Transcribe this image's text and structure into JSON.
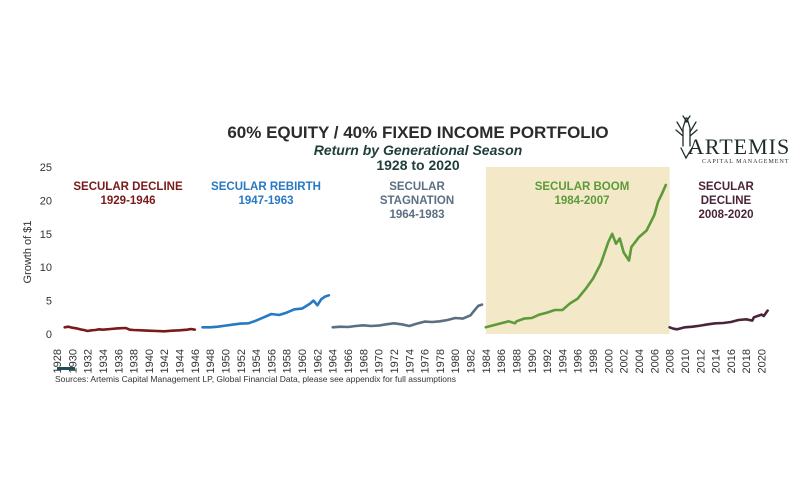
{
  "logo": {
    "name": "ARTEMIS",
    "tagline": "CAPITAL MANAGEMENT"
  },
  "source": "Sources: Artemis Capital Management LP, Global Financial Data, please see appendix for full assumptions",
  "colors": {
    "highlight": "#f3e9c8",
    "axis_marker": "#1f4d57"
  },
  "chart_data": {
    "type": "line",
    "title": "60% EQUITY / 40% FIXED INCOME PORTFOLIO",
    "subtitle": "Return by Generational Season",
    "date_range": "1928 to 2020",
    "xlabel": "",
    "ylabel": "Growth of $1",
    "xlim": [
      1928,
      2021.5
    ],
    "ylim": [
      0,
      25
    ],
    "yticks": [
      0,
      5,
      10,
      15,
      20,
      25
    ],
    "xticks": [
      1928,
      1930,
      1932,
      1934,
      1936,
      1938,
      1940,
      1942,
      1944,
      1946,
      1948,
      1950,
      1952,
      1954,
      1956,
      1958,
      1960,
      1962,
      1964,
      1966,
      1968,
      1970,
      1972,
      1974,
      1976,
      1978,
      1980,
      1982,
      1984,
      1986,
      1988,
      1990,
      1992,
      1994,
      1996,
      1998,
      2000,
      2002,
      2004,
      2006,
      2008,
      2010,
      2012,
      2014,
      2016,
      2018,
      2020
    ],
    "highlight_range": [
      1984,
      2008
    ],
    "grid": false,
    "legend": "none",
    "series": [
      {
        "name": "SECULAR DECLINE 1929-1946",
        "label_line1": "SECULAR DECLINE",
        "label_line2": "1929-1946",
        "color": "#7a1a1a",
        "x": [
          1929,
          1929.5,
          1930,
          1930.5,
          1931,
          1931.5,
          1932,
          1932.5,
          1933,
          1933.5,
          1934,
          1935,
          1936,
          1937,
          1937.5,
          1938,
          1939,
          1940,
          1941,
          1942,
          1943,
          1944,
          1945,
          1945.5,
          1946
        ],
        "y": [
          1.0,
          1.1,
          0.95,
          0.85,
          0.7,
          0.6,
          0.45,
          0.55,
          0.6,
          0.7,
          0.65,
          0.75,
          0.85,
          0.9,
          0.65,
          0.6,
          0.55,
          0.5,
          0.45,
          0.4,
          0.5,
          0.55,
          0.65,
          0.75,
          0.65
        ]
      },
      {
        "name": "SECULAR REBIRTH 1947-1963",
        "label_line1": "SECULAR REBIRTH",
        "label_line2": "1947-1963",
        "color": "#2779c4",
        "x": [
          1947,
          1948,
          1949,
          1950,
          1951,
          1952,
          1953,
          1954,
          1955,
          1956,
          1957,
          1958,
          1959,
          1960,
          1961,
          1961.5,
          1962,
          1962.5,
          1963,
          1963.5
        ],
        "y": [
          1.0,
          1.0,
          1.1,
          1.25,
          1.4,
          1.55,
          1.6,
          2.0,
          2.5,
          3.0,
          2.85,
          3.2,
          3.7,
          3.8,
          4.5,
          5.0,
          4.3,
          5.2,
          5.6,
          5.8
        ]
      },
      {
        "name": "SECULAR STAGNATION 1964-1983",
        "label_line1": "SECULAR",
        "label_line2": "STAGNATION",
        "label_line3": "1964-1983",
        "color": "#5b6f82",
        "x": [
          1964,
          1965,
          1966,
          1967,
          1968,
          1969,
          1970,
          1971,
          1972,
          1973,
          1974,
          1975,
          1976,
          1977,
          1978,
          1979,
          1980,
          1981,
          1982,
          1982.5,
          1983,
          1983.5
        ],
        "y": [
          1.0,
          1.1,
          1.05,
          1.2,
          1.3,
          1.2,
          1.25,
          1.45,
          1.6,
          1.45,
          1.2,
          1.55,
          1.85,
          1.8,
          1.9,
          2.1,
          2.4,
          2.3,
          2.8,
          3.5,
          4.2,
          4.4
        ]
      },
      {
        "name": "SECULAR BOOM 1984-2007",
        "label_line1": "SECULAR BOOM",
        "label_line2": "1984-2007",
        "color": "#5c9a3a",
        "x": [
          1984,
          1985,
          1986,
          1987,
          1987.8,
          1988,
          1989,
          1990,
          1991,
          1992,
          1993,
          1994,
          1995,
          1996,
          1997,
          1998,
          1999,
          2000,
          2000.5,
          2001,
          2001.5,
          2002,
          2002.7,
          2003,
          2004,
          2005,
          2006,
          2006.5,
          2007,
          2007.5
        ],
        "y": [
          1.0,
          1.3,
          1.6,
          1.9,
          1.6,
          1.9,
          2.3,
          2.4,
          2.9,
          3.2,
          3.6,
          3.6,
          4.6,
          5.3,
          6.7,
          8.3,
          10.5,
          13.8,
          15.0,
          13.5,
          14.3,
          12.2,
          11.0,
          13.0,
          14.5,
          15.5,
          17.8,
          19.8,
          21.0,
          22.3
        ]
      },
      {
        "name": "SECULAR DECLINE 2008-2020",
        "label_line1": "SECULAR",
        "label_line2": "DECLINE",
        "label_line3": "2008-2020",
        "color": "#4a2438",
        "x": [
          2008,
          2008.5,
          2009,
          2009.5,
          2010,
          2011,
          2012,
          2013,
          2014,
          2015,
          2016,
          2017,
          2018,
          2018.8,
          2019,
          2020,
          2020.3,
          2020.8
        ],
        "y": [
          1.0,
          0.8,
          0.7,
          0.85,
          1.0,
          1.1,
          1.25,
          1.45,
          1.6,
          1.65,
          1.8,
          2.1,
          2.2,
          2.0,
          2.5,
          2.9,
          2.7,
          3.5
        ]
      }
    ]
  }
}
